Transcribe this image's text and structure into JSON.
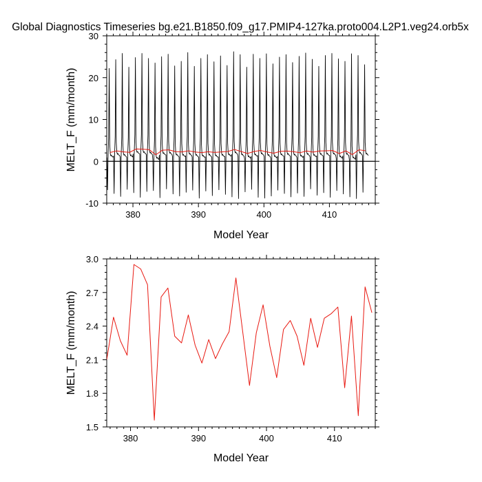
{
  "figure": {
    "title": "Global Diagnostics Timeseries bg.e21.B1850.f09_g17.PMIP4-127ka.proto004.L2P1.veg24.orb5x"
  },
  "chart_data": [
    {
      "type": "line",
      "xlabel": "Model Year",
      "ylabel": "MELT_F (mm/month)",
      "xlim": [
        376,
        417
      ],
      "ylim": [
        -10,
        30
      ],
      "xticks": [
        380,
        390,
        400,
        410
      ],
      "yticks": [
        -10,
        0,
        10,
        20,
        30
      ],
      "zero_line": true,
      "series": [
        {
          "kind": "monthly",
          "color": "#000000",
          "start_year": 376,
          "annual_means": [
            2.1,
            2.48,
            2.27,
            2.14,
            2.95,
            2.91,
            2.77,
            1.56,
            2.66,
            2.74,
            2.31,
            2.25,
            2.5,
            2.23,
            2.07,
            2.28,
            2.11,
            2.24,
            2.35,
            2.83,
            2.35,
            1.87,
            2.34,
            2.59,
            2.22,
            1.94,
            2.37,
            2.45,
            2.31,
            2.05,
            2.47,
            2.21,
            2.47,
            2.51,
            2.57,
            1.85,
            2.49,
            1.6,
            2.75,
            2.52
          ],
          "annual_peaks": [
            22.2,
            24.3,
            25.8,
            22.5,
            24.8,
            25.8,
            24.6,
            23.5,
            25.0,
            25.6,
            22.8,
            23.9,
            26.0,
            22.7,
            24.6,
            25.5,
            23.8,
            25.2,
            22.9,
            26.2,
            25.5,
            22.5,
            25.6,
            24.6,
            25.7,
            23.3,
            24.9,
            25.5,
            23.6,
            25.1,
            25.9,
            24.4,
            22.7,
            25.3,
            25.8,
            24.5,
            23.9,
            25.7,
            25.3,
            23.1
          ],
          "annual_troughs": [
            -6.8,
            -7.7,
            -8.4,
            -6.7,
            -7.5,
            -8.6,
            -7.2,
            -7.0,
            -8.7,
            -6.6,
            -7.8,
            -8.3,
            -7.4,
            -6.9,
            -8.8,
            -7.1,
            -8.2,
            -6.8,
            -7.9,
            -8.5,
            -8.9,
            -7.3,
            -6.7,
            -8.6,
            -8.8,
            -8.3,
            -6.9,
            -7.7,
            -8.5,
            -7.6,
            -8.4,
            -6.6,
            -8.1,
            -7.5,
            -8.6,
            -7.0,
            -7.8,
            -8.5,
            -8.9,
            -7.4
          ]
        },
        {
          "kind": "annual",
          "color": "#e8170f",
          "x": [
            376.5,
            377.5,
            378.5,
            379.5,
            380.5,
            381.5,
            382.5,
            383.5,
            384.5,
            385.5,
            386.5,
            387.5,
            388.5,
            389.5,
            390.5,
            391.5,
            392.5,
            393.5,
            394.5,
            395.5,
            396.5,
            397.5,
            398.5,
            399.5,
            400.5,
            401.5,
            402.5,
            403.5,
            404.5,
            405.5,
            406.5,
            407.5,
            408.5,
            409.5,
            410.5,
            411.5,
            412.5,
            413.5,
            414.5,
            415.5
          ],
          "values": [
            2.1,
            2.48,
            2.27,
            2.14,
            2.95,
            2.91,
            2.77,
            1.56,
            2.66,
            2.74,
            2.31,
            2.25,
            2.5,
            2.23,
            2.07,
            2.28,
            2.11,
            2.24,
            2.35,
            2.83,
            2.35,
            1.87,
            2.34,
            2.59,
            2.22,
            1.94,
            2.37,
            2.45,
            2.31,
            2.05,
            2.47,
            2.21,
            2.47,
            2.51,
            2.57,
            1.85,
            2.49,
            1.6,
            2.75,
            2.52
          ]
        }
      ]
    },
    {
      "type": "line",
      "xlabel": "Model Year",
      "ylabel": "MELT_F (mm/month)",
      "xlim": [
        376.5,
        416
      ],
      "ylim": [
        1.5,
        3.0
      ],
      "xticks": [
        380,
        390,
        400,
        410
      ],
      "yticks": [
        1.5,
        1.8,
        2.1,
        2.4,
        2.7,
        3.0
      ],
      "ytick_labels": [
        "1.5",
        "1.8",
        "2.1",
        "2.4",
        "2.7",
        "3.0"
      ],
      "series": [
        {
          "color": "#e8170f",
          "x": [
            376.5,
            377.5,
            378.5,
            379.5,
            380.5,
            381.5,
            382.5,
            383.5,
            384.5,
            385.5,
            386.5,
            387.5,
            388.5,
            389.5,
            390.5,
            391.5,
            392.5,
            393.5,
            394.5,
            395.5,
            396.5,
            397.5,
            398.5,
            399.5,
            400.5,
            401.5,
            402.5,
            403.5,
            404.5,
            405.5,
            406.5,
            407.5,
            408.5,
            409.5,
            410.5,
            411.5,
            412.5,
            413.5,
            414.5,
            415.5
          ],
          "values": [
            2.1,
            2.48,
            2.27,
            2.14,
            2.95,
            2.91,
            2.77,
            1.56,
            2.66,
            2.74,
            2.31,
            2.25,
            2.5,
            2.23,
            2.07,
            2.28,
            2.11,
            2.24,
            2.35,
            2.83,
            2.35,
            1.87,
            2.34,
            2.59,
            2.22,
            1.94,
            2.37,
            2.45,
            2.31,
            2.05,
            2.47,
            2.21,
            2.47,
            2.51,
            2.57,
            1.85,
            2.49,
            1.6,
            2.75,
            2.52
          ]
        }
      ]
    }
  ]
}
